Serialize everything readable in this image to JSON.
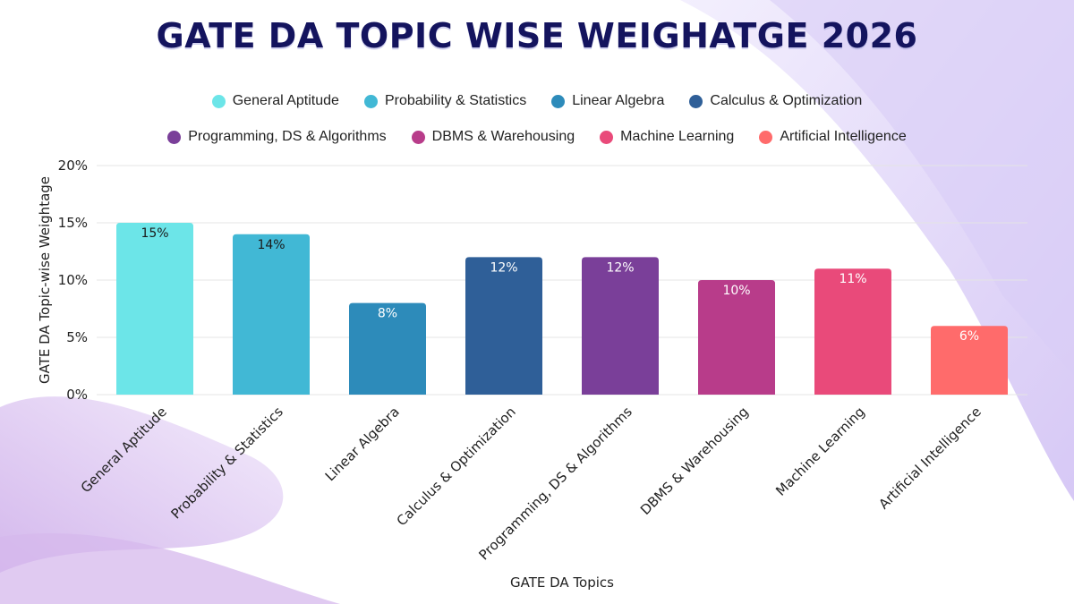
{
  "chart_data": {
    "type": "bar",
    "title": "GATE DA TOPIC WISE WEIGHATGE 2026",
    "xlabel": "GATE DA Topics",
    "ylabel": "GATE DA Topic-wise Weightage",
    "ylim": [
      0,
      20
    ],
    "yticks": [
      "0%",
      "5%",
      "10%",
      "15%",
      "20%"
    ],
    "ytick_values": [
      0,
      5,
      10,
      15,
      20
    ],
    "categories": [
      "General Aptitude",
      "Probability & Statistics",
      "Linear Algebra",
      "Calculus & Optimization",
      "Programming, DS & Algorithms",
      "DBMS & Warehousing",
      "Machine Learning",
      "Artificial Intelligence"
    ],
    "values": [
      15,
      14,
      8,
      12,
      12,
      10,
      11,
      6
    ],
    "data_labels": [
      "15%",
      "14%",
      "8%",
      "12%",
      "12%",
      "10%",
      "11%",
      "6%"
    ],
    "colors": [
      "#6ce5e8",
      "#41b8d5",
      "#2d8bba",
      "#2f5f98",
      "#7a3f99",
      "#b83c8a",
      "#e94a7a",
      "#ff6b6b"
    ],
    "label_colors": [
      "#1a1a1a",
      "#1a1a1a",
      "#ffffff",
      "#ffffff",
      "#ffffff",
      "#ffffff",
      "#ffffff",
      "#ffffff"
    ],
    "grid": true,
    "legend": "top-center"
  }
}
